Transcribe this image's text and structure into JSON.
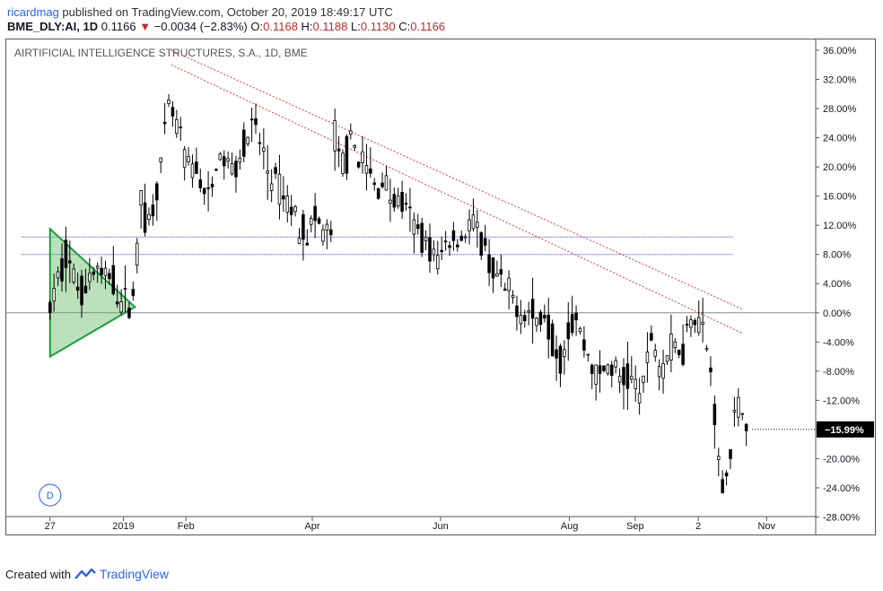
{
  "header": {
    "user": "ricardmag",
    "published_text": "published on TradingView.com, October 20, 2019 18:49:17 UTC"
  },
  "quote": {
    "symbol": "BME_DLY:AI, 1D",
    "last": "0.1166",
    "change": "−0.0034 (−2.83%)",
    "o_label": "O:",
    "o": "0.1168",
    "h_label": "H:",
    "h": "0.1188",
    "l_label": "L:",
    "l": "0.1130",
    "c_label": "C:",
    "c": "0.1166"
  },
  "footer": {
    "created": "Created with",
    "brand": "TradingView"
  },
  "chart_data": {
    "type": "candlestick",
    "title": "AIRTIFICIAL INTELLIGENCE STRUCTURES, S.A., 1D, BME",
    "y_unit": "%",
    "ylim": [
      -30.4,
      37.6
    ],
    "y_ticks": [
      "36.00%",
      "32.00%",
      "28.00%",
      "24.00%",
      "20.00%",
      "16.00%",
      "12.00%",
      "8.00%",
      "4.00%",
      "0.00%",
      "-4.00%",
      "-8.00%",
      "-12.00%",
      "-16.00%",
      "-20.00%",
      "-24.00%",
      "-28.00%"
    ],
    "y_tick_values": [
      36,
      32,
      28,
      24,
      20,
      16,
      12,
      8,
      4,
      0,
      -4,
      -8,
      -12,
      -16,
      -20,
      -24,
      -28
    ],
    "x_ticks": [
      "27",
      "2019",
      "Feb",
      "Apr",
      "Jun",
      "Aug",
      "Sep",
      "2",
      "Nov"
    ],
    "x_tick_values": [
      0,
      11.5,
      21.3,
      41.1,
      61.2,
      81.4,
      91.7,
      101.6,
      112.3
    ],
    "current_value_label": "−15.99%",
    "current_value": -15.99,
    "baseline": 0,
    "horizontal_levels": [
      10.4,
      8.0
    ],
    "trendlines": [
      {
        "from": [
          19.0,
          36.0
        ],
        "to": [
          108.5,
          0.5
        ]
      },
      {
        "from": [
          19.0,
          34.0
        ],
        "to": [
          108.5,
          -2.8
        ]
      }
    ],
    "triangle": [
      [
        0,
        11.5
      ],
      [
        0,
        -6.0
      ],
      [
        13.3,
        0.8
      ]
    ],
    "path": [
      [
        0,
        0.5
      ],
      [
        1.2,
        4.0
      ],
      [
        2.4,
        8.5
      ],
      [
        3.6,
        5.0
      ],
      [
        4.8,
        3.0
      ],
      [
        6.0,
        4.5
      ],
      [
        7.2,
        6.5
      ],
      [
        8.4,
        4.0
      ],
      [
        9.6,
        5.5
      ],
      [
        10.8,
        2.0
      ],
      [
        12.0,
        1.0
      ],
      [
        13.3,
        3.5
      ],
      [
        13.7,
        8.5
      ],
      [
        14.0,
        15.0
      ],
      [
        14.5,
        18.5
      ],
      [
        15.0,
        11.5
      ],
      [
        15.8,
        13.0
      ],
      [
        16.8,
        18.0
      ],
      [
        17.7,
        21.5
      ],
      [
        18.6,
        28.0
      ],
      [
        19.6,
        26.0
      ],
      [
        20.6,
        23.5
      ],
      [
        21.6,
        19.5
      ],
      [
        22.8,
        20.0
      ],
      [
        24.0,
        17.0
      ],
      [
        25.0,
        14.5
      ],
      [
        26.0,
        20.5
      ],
      [
        27.2,
        21.0
      ],
      [
        28.4,
        19.5
      ],
      [
        29.6,
        21.5
      ],
      [
        30.8,
        24.0
      ],
      [
        32.0,
        25.5
      ],
      [
        33.2,
        22.5
      ],
      [
        34.4,
        18.5
      ],
      [
        35.6,
        17.5
      ],
      [
        36.8,
        15.5
      ],
      [
        38.0,
        14.0
      ],
      [
        39.2,
        12.0
      ],
      [
        40.4,
        11.0
      ],
      [
        41.6,
        12.5
      ],
      [
        42.8,
        11.0
      ],
      [
        44.0,
        10.5
      ],
      [
        44.7,
        25.5
      ],
      [
        45.4,
        20.0
      ],
      [
        46.4,
        21.5
      ],
      [
        47.6,
        23.0
      ],
      [
        48.8,
        21.0
      ],
      [
        50.0,
        19.0
      ],
      [
        51.2,
        16.5
      ],
      [
        52.4,
        19.0
      ],
      [
        53.6,
        15.0
      ],
      [
        54.8,
        15.5
      ],
      [
        56.0,
        13.5
      ],
      [
        57.2,
        11.5
      ],
      [
        58.4,
        10.5
      ],
      [
        59.6,
        8.5
      ],
      [
        60.8,
        7.0
      ],
      [
        62.0,
        9.5
      ],
      [
        63.2,
        10.5
      ],
      [
        64.4,
        10.0
      ],
      [
        65.6,
        12.5
      ],
      [
        66.8,
        11.0
      ],
      [
        68.0,
        8.5
      ],
      [
        69.2,
        6.0
      ],
      [
        70.4,
        4.0
      ],
      [
        71.6,
        2.5
      ],
      [
        72.8,
        1.5
      ],
      [
        74.0,
        0.5
      ],
      [
        75.2,
        0.0
      ],
      [
        76.4,
        -1.5
      ],
      [
        77.6,
        0.5
      ],
      [
        78.8,
        -4.0
      ],
      [
        80.0,
        -6.0
      ],
      [
        81.2,
        -2.0
      ],
      [
        82.4,
        -0.5
      ],
      [
        83.6,
        -4.5
      ],
      [
        84.8,
        -6.5
      ],
      [
        86.0,
        -9.5
      ],
      [
        87.2,
        -7.0
      ],
      [
        88.4,
        -8.0
      ],
      [
        89.6,
        -9.5
      ],
      [
        90.8,
        -9.0
      ],
      [
        92.0,
        -10.5
      ],
      [
        93.2,
        -9.5
      ],
      [
        94.4,
        -2.5
      ],
      [
        95.6,
        -7.5
      ],
      [
        96.8,
        -5.5
      ],
      [
        98.0,
        -4.5
      ],
      [
        99.2,
        -5.0
      ],
      [
        100.4,
        0.5
      ],
      [
        101.6,
        -0.5
      ],
      [
        102.8,
        -4.0
      ],
      [
        103.6,
        -9.0
      ],
      [
        104.2,
        -13.0
      ],
      [
        104.8,
        -21.5
      ],
      [
        105.6,
        -23.5
      ],
      [
        106.4,
        -20.5
      ],
      [
        107.2,
        -15.0
      ],
      [
        108.0,
        -13.5
      ],
      [
        108.8,
        -12.5
      ],
      [
        109.6,
        -16.0
      ]
    ]
  }
}
